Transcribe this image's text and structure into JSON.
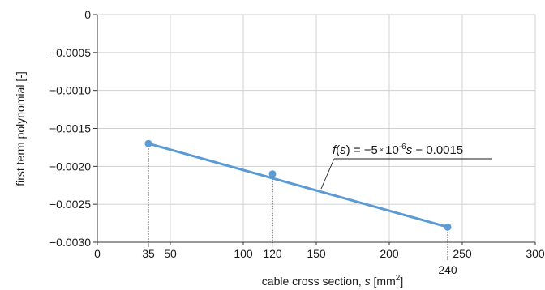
{
  "chart_data": {
    "type": "scatter",
    "xlabel": "cable cross section, s [mm2]",
    "xlabel_parts": {
      "prefix": "cable cross section, ",
      "var": "s",
      "mid": " [mm",
      "sup": "2",
      "suffix": "]"
    },
    "ylabel": "first term polynomial [-]",
    "xlim": [
      0,
      300
    ],
    "ylim": [
      -0.003,
      0
    ],
    "grid": true,
    "x_ticks": [
      0,
      50,
      100,
      150,
      200,
      250,
      300
    ],
    "x_tick_labels": [
      "0",
      "50",
      "100",
      "150",
      "200",
      "250",
      "300"
    ],
    "y_ticks": [
      0,
      -0.0005,
      -0.001,
      -0.0015,
      -0.002,
      -0.0025,
      -0.003
    ],
    "y_tick_labels": [
      "0",
      "−0.0005",
      "−0.0010",
      "−0.0015",
      "−0.0020",
      "−0.0025",
      "−0.0030"
    ],
    "series": [
      {
        "points": [
          {
            "x": 35,
            "y": -0.0017
          },
          {
            "x": 120,
            "y": -0.0021
          },
          {
            "x": 240,
            "y": -0.0028
          }
        ],
        "color": "#5b9bd5"
      }
    ],
    "fit_line": {
      "x": [
        35,
        240
      ],
      "slope": -5e-06,
      "intercept": -0.0015,
      "color": "#5b9bd5"
    },
    "point_labels": [
      {
        "x": 35,
        "text": "35"
      },
      {
        "x": 120,
        "text": "120"
      },
      {
        "x": 240,
        "text": "240"
      }
    ],
    "annotation": {
      "parts": {
        "f": "f",
        "paren_open": "(",
        "s": "s",
        "paren_close_eq": ") = −5",
        "times": "×",
        "ten": "10",
        "exp": "-6",
        "s2": "s",
        "rest": " − 0.0015"
      },
      "full_text": "f(s) = −5×10-6s − 0.0015"
    }
  }
}
